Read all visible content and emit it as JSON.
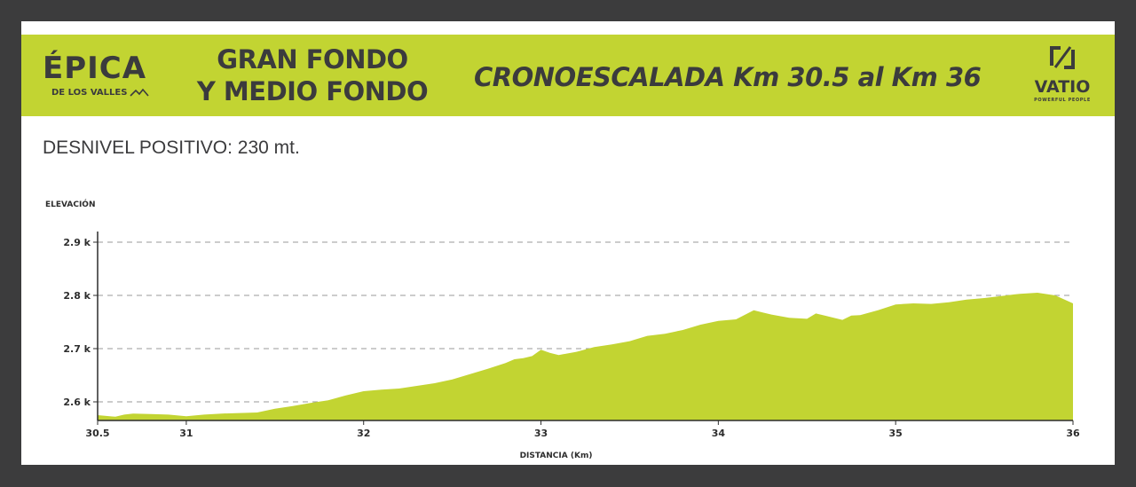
{
  "header": {
    "logo_left": {
      "word": "ÉPICA",
      "subtitle": "DE LOS VALLES"
    },
    "title_left_line1": "GRAN FONDO",
    "title_left_line2": "Y MEDIO FONDO",
    "title_right": "CRONOESCALADA Km 30.5 al Km 36",
    "logo_right": {
      "name": "VATIO",
      "tagline": "POWERFUL PEOPLE"
    }
  },
  "desnivel": "DESNIVEL POSITIVO: 230 mt.",
  "colors": {
    "banner": "#c2d432",
    "area": "#c2d432",
    "frame": "#3c3c3d",
    "text": "#3b3b3d"
  },
  "chart_data": {
    "type": "area",
    "title": "",
    "xlabel": "DISTANCIA (Km)",
    "ylabel": "ELEVACIÓN",
    "xlim": [
      30.5,
      36
    ],
    "ylim": [
      2.565,
      2.92
    ],
    "x_ticks": [
      30.5,
      31,
      32,
      33,
      34,
      35,
      36
    ],
    "x_tick_labels": [
      "30.5",
      "31",
      "32",
      "33",
      "34",
      "35",
      "36"
    ],
    "y_ticks": [
      2.6,
      2.7,
      2.8,
      2.9
    ],
    "y_tick_labels": [
      "2.6 k",
      "2.7 k",
      "2.8 k",
      "2.9 k"
    ],
    "grid": "horizontal-dashed",
    "series": [
      {
        "x": [
          30.5,
          30.6,
          30.65,
          30.7,
          30.8,
          30.9,
          31.0,
          31.1,
          31.2,
          31.3,
          31.4,
          31.5,
          31.6,
          31.7,
          31.8,
          31.9,
          32.0,
          32.1,
          32.2,
          32.3,
          32.4,
          32.5,
          32.6,
          32.7,
          32.8,
          32.85,
          32.9,
          32.95,
          33.0,
          33.05,
          33.1,
          33.2,
          33.3,
          33.4,
          33.5,
          33.6,
          33.7,
          33.8,
          33.9,
          34.0,
          34.1,
          34.2,
          34.25,
          34.3,
          34.4,
          34.5,
          34.55,
          34.6,
          34.7,
          34.75,
          34.8,
          34.9,
          35.0,
          35.1,
          35.2,
          35.3,
          35.4,
          35.5,
          35.6,
          35.7,
          35.75,
          35.8,
          35.9,
          36.0
        ],
        "y": [
          2.575,
          2.572,
          2.576,
          2.578,
          2.577,
          2.576,
          2.573,
          2.576,
          2.578,
          2.579,
          2.58,
          2.587,
          2.592,
          2.598,
          2.603,
          2.612,
          2.62,
          2.623,
          2.625,
          2.63,
          2.635,
          2.642,
          2.652,
          2.662,
          2.673,
          2.68,
          2.682,
          2.686,
          2.698,
          2.692,
          2.688,
          2.694,
          2.703,
          2.708,
          2.714,
          2.724,
          2.728,
          2.735,
          2.745,
          2.752,
          2.755,
          2.772,
          2.768,
          2.764,
          2.758,
          2.756,
          2.766,
          2.762,
          2.754,
          2.762,
          2.763,
          2.772,
          2.783,
          2.785,
          2.784,
          2.787,
          2.792,
          2.795,
          2.799,
          2.803,
          2.804,
          2.805,
          2.8,
          2.785
        ]
      }
    ]
  }
}
